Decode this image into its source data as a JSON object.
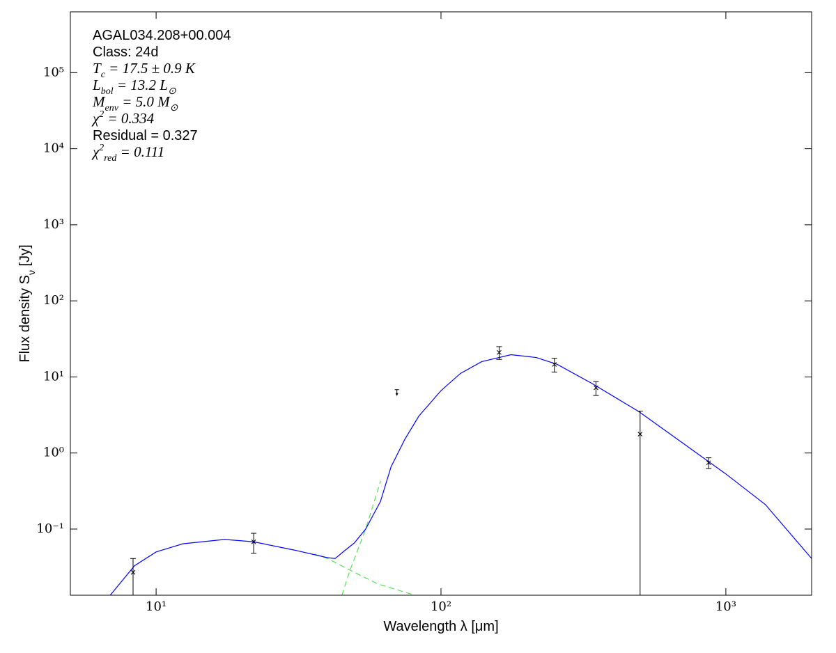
{
  "chart_data": {
    "type": "line",
    "xlog": true,
    "ylog": true,
    "xlim": [
      5,
      2000
    ],
    "ylim": [
      0.0135,
      630000
    ],
    "xticks": [
      {
        "value": 10,
        "label": "10¹"
      },
      {
        "value": 100,
        "label": "10²"
      },
      {
        "value": 1000,
        "label": "10³"
      }
    ],
    "yticks": [
      {
        "value": 0.1,
        "label": "10⁻¹"
      },
      {
        "value": 1,
        "label": "10⁰"
      },
      {
        "value": 10,
        "label": "10¹"
      },
      {
        "value": 100,
        "label": "10²"
      },
      {
        "value": 1000,
        "label": "10³"
      },
      {
        "value": 10000,
        "label": "10⁴"
      },
      {
        "value": 100000,
        "label": "10⁵"
      }
    ],
    "xlabel": "Wavelength λ [μm]",
    "ylabel": [
      {
        "t": "Flux density "
      },
      {
        "t": "S"
      },
      {
        "t": "ν",
        "s": "sub"
      },
      {
        "t": " [Jy]"
      }
    ],
    "annotations": [
      {
        "parts": [
          {
            "t": "AGAL034.208+00.004"
          }
        ]
      },
      {
        "parts": [
          {
            "t": "Class: 24d"
          }
        ]
      },
      {
        "math": true,
        "parts": [
          {
            "t": "T"
          },
          {
            "t": "c",
            "s": "sub"
          },
          {
            "t": " = 17.5 ± 0.9 K"
          }
        ]
      },
      {
        "math": true,
        "parts": [
          {
            "t": "L"
          },
          {
            "t": "bol",
            "s": "sub"
          },
          {
            "t": " = 13.2 L"
          },
          {
            "t": "⊙",
            "s": "sub"
          }
        ]
      },
      {
        "math": true,
        "parts": [
          {
            "t": "M"
          },
          {
            "t": "env",
            "s": "sub"
          },
          {
            "t": " = 5.0 M"
          },
          {
            "t": "⊙",
            "s": "sub"
          }
        ]
      },
      {
        "math": true,
        "parts": [
          {
            "t": "χ"
          },
          {
            "t": "2",
            "s": "sup"
          },
          {
            "t": " = 0.334"
          }
        ]
      },
      {
        "parts": [
          {
            "t": "Residual = 0.327"
          }
        ]
      },
      {
        "math": true,
        "parts": [
          {
            "t": "χ"
          },
          {
            "t": "2",
            "s": "sup"
          },
          {
            "t": "red",
            "s": "sub"
          },
          {
            "t": " = 0.111"
          }
        ]
      }
    ],
    "curves": [
      {
        "color": "#55e055",
        "dash": true,
        "x": [
          36,
          40,
          47.8,
          60,
          81
        ],
        "y": [
          0.047,
          0.041,
          0.029,
          0.019,
          0.0135
        ]
      },
      {
        "color": "#55e055",
        "dash": true,
        "x": [
          44.9,
          47.8,
          54.4,
          61.4
        ],
        "y": [
          0.0135,
          0.028,
          0.1,
          0.43
        ]
      },
      {
        "color": "#0000ff",
        "dash": false,
        "x": [
          6.9,
          8.4,
          10,
          12.4,
          17.4,
          22,
          30.5,
          40,
          42.5,
          45.3,
          49.7,
          54.4,
          61.3,
          66.8,
          74.7,
          83.6,
          100,
          117,
          139,
          176,
          216,
          256,
          339,
          495,
          702,
          1000,
          1376,
          2000
        ],
        "y": [
          0.0135,
          0.033,
          0.05,
          0.064,
          0.073,
          0.068,
          0.053,
          0.042,
          0.041,
          0.05,
          0.066,
          0.1,
          0.23,
          0.66,
          1.52,
          3.05,
          6.6,
          11.1,
          15.9,
          19.6,
          18,
          14.6,
          8.2,
          3.5,
          1.37,
          0.53,
          0.21,
          0.041
        ]
      }
    ],
    "points": {
      "color": "#000000",
      "x": [
        8.3,
        22,
        160,
        250,
        350,
        500,
        870
      ],
      "y": [
        0.027,
        0.068,
        21,
        14.6,
        7.2,
        1.77,
        0.745
      ],
      "yerr": [
        0.014,
        0.02,
        4,
        3,
        1.5,
        1.78,
        0.12
      ]
    },
    "upper_limits": {
      "color": "#000000",
      "x": [
        70
      ],
      "y": [
        6.8
      ]
    }
  }
}
